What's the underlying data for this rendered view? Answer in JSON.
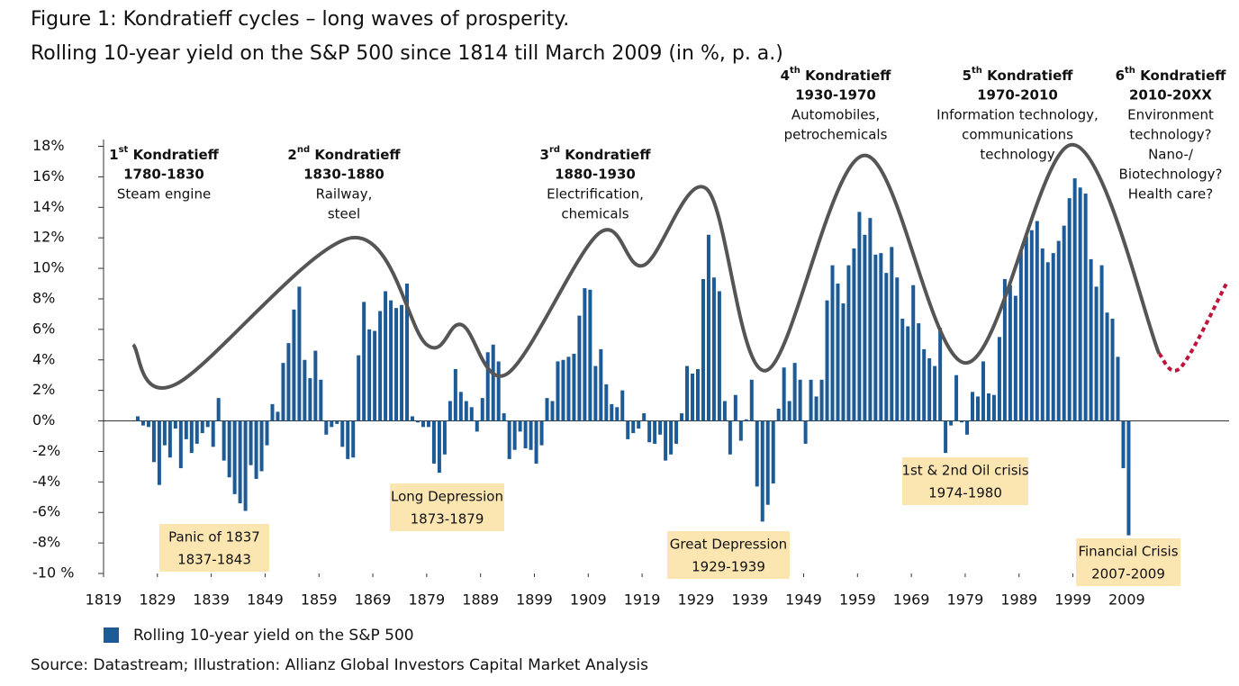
{
  "chart_data": {
    "type": "bar",
    "title": "Figure 1: Kondratieff cycles – long waves of prosperity.",
    "subtitle": "Rolling 10-year yield on the S&P 500 since 1814 till March 2009 (in %, p. a.)",
    "source": "Source: Datastream; Illustration: Allianz Global Investors Capital Market Analysis",
    "xlim": [
      1819,
      2028
    ],
    "xticks": [
      1819,
      1829,
      1839,
      1849,
      1859,
      1869,
      1879,
      1889,
      1899,
      1909,
      1919,
      1929,
      1939,
      1949,
      1959,
      1969,
      1979,
      1989,
      1999,
      2009
    ],
    "ylim": [
      -10,
      18
    ],
    "yticks": [
      {
        "value": -10,
        "label": "-10 %"
      },
      {
        "value": -8,
        "label": "-8%"
      },
      {
        "value": -6,
        "label": "-6%"
      },
      {
        "value": -4,
        "label": "-4%"
      },
      {
        "value": -2,
        "label": "-2%"
      },
      {
        "value": 0,
        "label": "0%"
      },
      {
        "value": 2,
        "label": "2%"
      },
      {
        "value": 4,
        "label": "4%"
      },
      {
        "value": 6,
        "label": "6%"
      },
      {
        "value": 8,
        "label": "8%"
      },
      {
        "value": 10,
        "label": "10%"
      },
      {
        "value": 12,
        "label": "12%"
      },
      {
        "value": 14,
        "label": "14%"
      },
      {
        "value": 16,
        "label": "16%"
      },
      {
        "value": 18,
        "label": "18%"
      }
    ],
    "x": [
      1825,
      1826,
      1827,
      1828,
      1829,
      1830,
      1831,
      1832,
      1833,
      1834,
      1835,
      1836,
      1837,
      1838,
      1839,
      1840,
      1841,
      1842,
      1843,
      1844,
      1845,
      1846,
      1847,
      1848,
      1849,
      1850,
      1851,
      1852,
      1853,
      1854,
      1855,
      1856,
      1857,
      1858,
      1859,
      1860,
      1861,
      1862,
      1863,
      1864,
      1865,
      1866,
      1867,
      1868,
      1869,
      1870,
      1871,
      1872,
      1873,
      1874,
      1875,
      1876,
      1877,
      1878,
      1879,
      1880,
      1881,
      1882,
      1883,
      1884,
      1885,
      1886,
      1887,
      1888,
      1889,
      1890,
      1891,
      1892,
      1893,
      1894,
      1895,
      1896,
      1897,
      1898,
      1899,
      1900,
      1901,
      1902,
      1903,
      1904,
      1905,
      1906,
      1907,
      1908,
      1909,
      1910,
      1911,
      1912,
      1913,
      1914,
      1915,
      1916,
      1917,
      1918,
      1919,
      1920,
      1921,
      1922,
      1923,
      1924,
      1925,
      1926,
      1927,
      1928,
      1929,
      1930,
      1931,
      1932,
      1933,
      1934,
      1935,
      1936,
      1937,
      1938,
      1939,
      1940,
      1941,
      1942,
      1943,
      1944,
      1945,
      1946,
      1947,
      1948,
      1949,
      1950,
      1951,
      1952,
      1953,
      1954,
      1955,
      1956,
      1957,
      1958,
      1959,
      1960,
      1961,
      1962,
      1963,
      1964,
      1965,
      1966,
      1967,
      1968,
      1969,
      1970,
      1971,
      1972,
      1973,
      1974,
      1975,
      1976,
      1977,
      1978,
      1979,
      1980,
      1981,
      1982,
      1983,
      1984,
      1985,
      1986,
      1987,
      1988,
      1989,
      1990,
      1991,
      1992,
      1993,
      1994,
      1995,
      1996,
      1997,
      1998,
      1999,
      2000,
      2001,
      2002,
      2003,
      2004,
      2005,
      2006,
      2007,
      2008,
      2009
    ],
    "series": [
      {
        "name": "Rolling 10-year yield on the S&P 500",
        "color": "#1d5b97",
        "values": [
          0.3,
          -0.3,
          -0.4,
          -2.7,
          -4.2,
          -1.6,
          -2.4,
          -0.5,
          -3.1,
          -1.2,
          -2.1,
          -1.5,
          -0.8,
          -0.4,
          -1.7,
          1.5,
          -2.6,
          -3.7,
          -4.8,
          -5.4,
          -5.9,
          -2.9,
          -3.8,
          -3.3,
          -1.6,
          1.1,
          0.6,
          3.8,
          5.1,
          7.3,
          8.8,
          4.0,
          2.8,
          4.6,
          2.7,
          -0.9,
          -0.4,
          -0.2,
          -1.7,
          -2.5,
          -2.4,
          4.3,
          7.8,
          6.0,
          5.9,
          7.2,
          8.5,
          7.9,
          7.4,
          7.6,
          9.0,
          0.3,
          -0.1,
          -0.4,
          -0.4,
          -2.8,
          -3.4,
          -2.2,
          1.3,
          3.4,
          1.9,
          1.3,
          0.9,
          -0.7,
          1.5,
          4.5,
          5.0,
          3.9,
          0.5,
          -2.5,
          -1.9,
          -0.7,
          -1.8,
          -1.9,
          -2.8,
          -1.6,
          1.5,
          1.3,
          3.9,
          4.0,
          4.2,
          4.4,
          6.9,
          8.7,
          8.6,
          3.6,
          4.7,
          2.4,
          1.1,
          0.9,
          2.0,
          -1.2,
          -0.8,
          -0.5,
          0.5,
          -1.4,
          -1.5,
          -0.9,
          -2.6,
          -2.2,
          -1.5,
          0.5,
          3.6,
          3.1,
          3.4,
          9.3,
          12.2,
          9.4,
          8.5,
          1.3,
          -2.2,
          1.7,
          -1.3,
          0.1,
          2.7,
          -4.3,
          -6.6,
          -5.5,
          -4.1,
          0.8,
          3.5,
          1.3,
          3.8,
          2.7,
          -1.5,
          2.7,
          1.6,
          2.7,
          7.9,
          10.2,
          9.0,
          7.7,
          10.2,
          11.3,
          13.7,
          12.2,
          13.3,
          10.9,
          11.0,
          9.7,
          11.4,
          9.4,
          6.7,
          6.2,
          8.9,
          6.4,
          4.7,
          4.1,
          3.6,
          6.1,
          -2.1,
          -0.3,
          3.0,
          -0.1,
          -0.9,
          1.9,
          1.6,
          3.9,
          1.8,
          1.7,
          5.5,
          9.3,
          8.9,
          8.2,
          11.2,
          12.1,
          12.5,
          13.1,
          11.3,
          10.4,
          11.0,
          11.8,
          12.8,
          14.6,
          15.9,
          15.3,
          14.9,
          10.6,
          8.8,
          10.2,
          7.1,
          6.7,
          4.2,
          -3.1,
          -7.5
        ]
      }
    ],
    "waves": {
      "color": "#555555",
      "x": [
        1824.5,
        1832.4,
        1865,
        1879,
        1885.5,
        1894,
        1911,
        1919.3,
        1931,
        1942,
        1960.3,
        1979.2,
        1998.8,
        2015
      ],
      "values": [
        5.0,
        2.4,
        12.0,
        5.0,
        6.3,
        3.1,
        12.3,
        10.2,
        15.2,
        3.3,
        17.4,
        3.8,
        18.1,
        4.4
      ]
    },
    "projection": {
      "color": "#c0143c",
      "x": [
        2015,
        2019,
        2027.5
      ],
      "values": [
        4.4,
        3.5,
        9.0
      ]
    },
    "eras": [
      {
        "ordinal": "1",
        "suffix": "st",
        "title": " Kondratieff",
        "period": "1780-1830",
        "desc": [
          "Steam engine"
        ]
      },
      {
        "ordinal": "2",
        "suffix": "nd",
        "title": " Kondratieff",
        "period": "1830-1880",
        "desc": [
          "Railway,",
          "steel"
        ]
      },
      {
        "ordinal": "3",
        "suffix": "rd",
        "title": " Kondratieff",
        "period": "1880-1930",
        "desc": [
          "Electrification,",
          "chemicals"
        ]
      },
      {
        "ordinal": "4",
        "suffix": "th",
        "title": " Kondratieff",
        "period": "1930-1970",
        "desc": [
          "Automobiles,",
          "petrochemicals"
        ]
      },
      {
        "ordinal": "5",
        "suffix": "th",
        "title": " Kondratieff",
        "period": "1970-2010",
        "desc": [
          "Information technology,",
          "communications",
          "technology"
        ]
      },
      {
        "ordinal": "6",
        "suffix": "th",
        "title": " Kondratieff",
        "period": "2010-20XX",
        "desc": [
          "Environment",
          "technology?",
          "Nano-/",
          "Biotechnology?",
          "Health care?"
        ]
      }
    ],
    "crises": [
      {
        "name": "Panic of 1837",
        "period": "1837-1843"
      },
      {
        "name": "Long Depression",
        "period": "1873-1879"
      },
      {
        "name": "Great Depression",
        "period": "1929-1939"
      },
      {
        "name": "1st & 2nd Oil crisis",
        "period": "1974-1980"
      },
      {
        "name": "Financial Crisis",
        "period": "2007-2009"
      }
    ]
  }
}
